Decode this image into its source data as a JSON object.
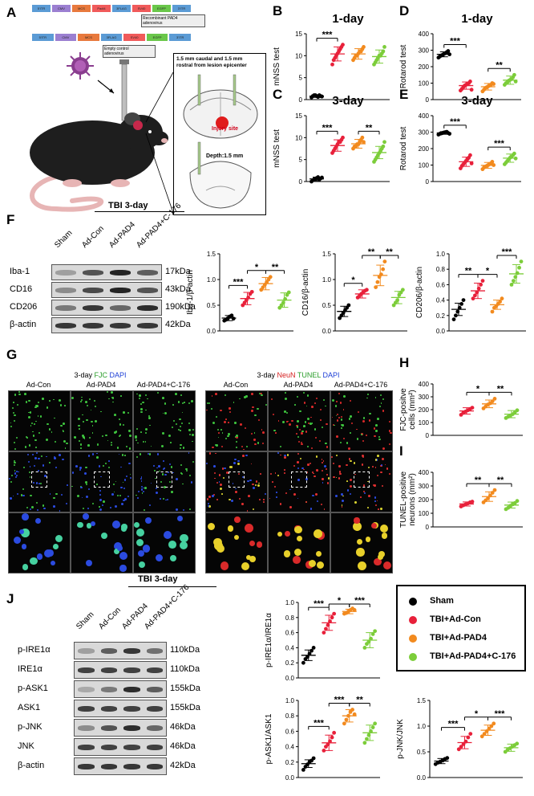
{
  "panels": {
    "A": "A",
    "B": "B",
    "C": "C",
    "D": "D",
    "E": "E",
    "F": "F",
    "G": "G",
    "H": "H",
    "I": "I",
    "J": "J"
  },
  "vectors": {
    "recombinant_label": "Recombinant PAD4\nadenovirus",
    "empty_label": "Empty control\nadenovirus",
    "row1": [
      "5'ITR",
      "CMV",
      "MCS",
      "Padi4",
      "3FLAG",
      "SV40",
      "EGFP",
      "3'ITR"
    ],
    "row2": [
      "5'ITR",
      "CMV",
      "MCS",
      "3FLAG",
      "SV40",
      "EGFP",
      "3'ITR"
    ],
    "colors": {
      "itr": "#5b9bd5",
      "cmv": "#9b7fd1",
      "mcs": "#e8793d",
      "padi4": "#f05a5a",
      "flag": "#5b9bd5",
      "sv40": "#f05a5a",
      "egfp": "#6ac74a"
    }
  },
  "schematic": {
    "inset_text": "1.5 mm caudal and 1.5 mm\nrostral from lesion epicenter",
    "injury_label": "Injury site",
    "depth_label": "Depth:1.5 mm"
  },
  "tbi_label_top": "TBI 3-day",
  "tbi_label_bottom": "TBI 3-day",
  "blot_F": {
    "lanes": [
      "Sham",
      "Ad-Con",
      "Ad-PAD4",
      "Ad-PAD4+C-176"
    ],
    "rows": [
      {
        "protein": "Iba-1",
        "kda": "17kDa"
      },
      {
        "protein": "CD16",
        "kda": "43kDa"
      },
      {
        "protein": "CD206",
        "kda": "190kDa"
      },
      {
        "protein": "β-actin",
        "kda": "42kDa"
      }
    ]
  },
  "blot_J": {
    "lanes": [
      "Sham",
      "Ad-Con",
      "Ad-PAD4",
      "Ad-PAD4+C-176"
    ],
    "rows": [
      {
        "protein": "p-IRE1α",
        "kda": "110kDa"
      },
      {
        "protein": "IRE1α",
        "kda": "110kDa"
      },
      {
        "protein": "p-ASK1",
        "kda": "155kDa"
      },
      {
        "protein": "ASK1",
        "kda": "155kDa"
      },
      {
        "protein": "p-JNK",
        "kda": "46kDa"
      },
      {
        "protein": "JNK",
        "kda": "46kDa"
      },
      {
        "protein": "β-actin",
        "kda": "42kDa"
      }
    ]
  },
  "micro": {
    "left_title_parts": [
      "3-day ",
      "FJC",
      " DAPI"
    ],
    "right_title_parts": [
      "3-day ",
      "NeuN",
      " TUNEL",
      " DAPI"
    ],
    "col_heads": [
      "Ad-Con",
      "Ad-PAD4",
      "Ad-PAD4+C-176"
    ]
  },
  "legend": {
    "items": [
      {
        "name": "Sham",
        "color": "#000000"
      },
      {
        "name": "TBI+Ad-Con",
        "color": "#e8203a"
      },
      {
        "name": "TBI+Ad-PAD4",
        "color": "#f28a1e"
      },
      {
        "name": "TBI+Ad-PAD4+C-176",
        "color": "#7ccd3a"
      }
    ]
  },
  "chart_data": [
    {
      "id": "B",
      "type": "scatter",
      "title": "1-day",
      "ylabel": "mNSS test",
      "ylim": [
        0,
        15
      ],
      "yticks": [
        0,
        5,
        10,
        15
      ],
      "groups": [
        "Sham",
        "TBI+Ad-Con",
        "TBI+Ad-PAD4",
        "TBI+Ad-PAD4+C-176"
      ],
      "means": [
        0.8,
        10.4,
        10.4,
        9.8
      ],
      "sd": [
        0.3,
        1.6,
        1.2,
        1.5
      ],
      "points": [
        [
          0.5,
          0.8,
          1.0,
          1.0,
          0.8,
          0.6,
          1.0,
          0.8,
          0.7
        ],
        [
          8,
          9,
          9.5,
          10,
          10.5,
          11,
          11.5,
          12,
          12.5
        ],
        [
          9,
          9.5,
          10,
          10,
          10.5,
          11,
          11,
          11.5,
          12
        ],
        [
          8,
          8.5,
          9,
          9.5,
          10,
          10,
          10.5,
          11,
          12
        ]
      ],
      "sig": [
        {
          "a": 0,
          "b": 1,
          "label": "***"
        }
      ]
    },
    {
      "id": "C",
      "type": "scatter",
      "title": "3-day",
      "ylabel": "mNSS test",
      "ylim": [
        0,
        15
      ],
      "yticks": [
        0,
        5,
        10,
        15
      ],
      "groups": [
        "Sham",
        "TBI+Ad-Con",
        "TBI+Ad-PAD4",
        "TBI+Ad-PAD4+C-176"
      ],
      "means": [
        0.6,
        8.2,
        8.6,
        6.6
      ],
      "sd": [
        0.4,
        1.3,
        1.0,
        1.4
      ],
      "points": [
        [
          0,
          0.3,
          0.5,
          0.6,
          0.8,
          1.0,
          0.5,
          0.7,
          0.9
        ],
        [
          6.5,
          7,
          7.5,
          8,
          8.5,
          9,
          9,
          9.5,
          10
        ],
        [
          7.5,
          8,
          8,
          8.5,
          8.5,
          9,
          9.5,
          10,
          9
        ],
        [
          4.5,
          5,
          5.5,
          6,
          6.5,
          7,
          7.5,
          8,
          9
        ]
      ],
      "sig": [
        {
          "a": 0,
          "b": 1,
          "label": "***"
        },
        {
          "a": 2,
          "b": 3,
          "label": "**"
        }
      ]
    },
    {
      "id": "D",
      "type": "scatter",
      "title": "1-day",
      "ylabel": "Rotarod test",
      "ylim": [
        0,
        400
      ],
      "yticks": [
        0,
        100,
        200,
        300,
        400
      ],
      "groups": [
        "Sham",
        "TBI+Ad-Con",
        "TBI+Ad-PAD4",
        "TBI+Ad-PAD4+C-176"
      ],
      "means": [
        275,
        85,
        78,
        118
      ],
      "sd": [
        15,
        22,
        20,
        25
      ],
      "points": [
        [
          255,
          262,
          268,
          272,
          278,
          282,
          288,
          295,
          275
        ],
        [
          55,
          65,
          75,
          85,
          90,
          95,
          100,
          110,
          60
        ],
        [
          50,
          60,
          70,
          75,
          80,
          85,
          90,
          100,
          95
        ],
        [
          90,
          100,
          105,
          115,
          120,
          125,
          135,
          150,
          110
        ]
      ],
      "sig": [
        {
          "a": 0,
          "b": 1,
          "label": "***"
        },
        {
          "a": 2,
          "b": 3,
          "label": "**"
        }
      ]
    },
    {
      "id": "E",
      "type": "scatter",
      "title": "3-day",
      "ylabel": "Rotarod test",
      "ylim": [
        0,
        400
      ],
      "yticks": [
        0,
        100,
        200,
        300,
        400
      ],
      "groups": [
        "Sham",
        "TBI+Ad-Con",
        "TBI+Ad-PAD4",
        "TBI+Ad-PAD4+C-176"
      ],
      "means": [
        295,
        120,
        98,
        142
      ],
      "sd": [
        8,
        28,
        18,
        25
      ],
      "points": [
        [
          285,
          290,
          292,
          295,
          298,
          300,
          302,
          295,
          290
        ],
        [
          80,
          95,
          105,
          115,
          125,
          135,
          145,
          160,
          110
        ],
        [
          75,
          85,
          90,
          95,
          100,
          105,
          110,
          120,
          100
        ],
        [
          105,
          115,
          125,
          135,
          145,
          150,
          160,
          170,
          140
        ]
      ],
      "sig": [
        {
          "a": 0,
          "b": 1,
          "label": "***"
        },
        {
          "a": 2,
          "b": 3,
          "label": "***"
        }
      ]
    },
    {
      "id": "F1",
      "type": "scatter",
      "ylabel": "Iba-1/β-actin",
      "ylim": [
        0,
        1.5
      ],
      "yticks": [
        0,
        0.5,
        1.0,
        1.5
      ],
      "ytick_labels": [
        "0.0",
        "0.5",
        "1.0",
        "1.5"
      ],
      "groups": [
        "Sham",
        "TBI+Ad-Con",
        "TBI+Ad-PAD4",
        "TBI+Ad-PAD4+C-176"
      ],
      "means": [
        0.25,
        0.63,
        0.92,
        0.6
      ],
      "sd": [
        0.05,
        0.12,
        0.12,
        0.14
      ],
      "points": [
        [
          0.2,
          0.22,
          0.25,
          0.28,
          0.3,
          0.24
        ],
        [
          0.5,
          0.55,
          0.6,
          0.65,
          0.72,
          0.76
        ],
        [
          0.8,
          0.85,
          0.9,
          0.95,
          1.0,
          1.05
        ],
        [
          0.45,
          0.5,
          0.55,
          0.62,
          0.7,
          0.75
        ]
      ],
      "sig": [
        {
          "a": 0,
          "b": 1,
          "label": "***"
        },
        {
          "a": 1,
          "b": 2,
          "label": "*"
        },
        {
          "a": 2,
          "b": 3,
          "label": "**"
        }
      ]
    },
    {
      "id": "F2",
      "type": "scatter",
      "ylabel": "CD16/β-actin",
      "ylim": [
        0,
        1.5
      ],
      "yticks": [
        0,
        0.5,
        1.0,
        1.5
      ],
      "ytick_labels": [
        "0.0",
        "0.5",
        "1.0",
        "1.5"
      ],
      "groups": [
        "Sham",
        "TBI+Ad-Con",
        "TBI+Ad-PAD4",
        "TBI+Ad-PAD4+C-176"
      ],
      "means": [
        0.38,
        0.72,
        1.08,
        0.65
      ],
      "sd": [
        0.1,
        0.08,
        0.2,
        0.12
      ],
      "points": [
        [
          0.25,
          0.3,
          0.35,
          0.4,
          0.45,
          0.5
        ],
        [
          0.65,
          0.68,
          0.72,
          0.75,
          0.78,
          0.8
        ],
        [
          0.85,
          0.95,
          1.05,
          1.1,
          1.2,
          1.35
        ],
        [
          0.5,
          0.55,
          0.6,
          0.7,
          0.75,
          0.8
        ]
      ],
      "sig": [
        {
          "a": 0,
          "b": 1,
          "label": "*"
        },
        {
          "a": 1,
          "b": 2,
          "label": "**"
        },
        {
          "a": 2,
          "b": 3,
          "label": "**"
        }
      ]
    },
    {
      "id": "F3",
      "type": "scatter",
      "ylabel": "CD206/β-actin",
      "ylim": [
        0,
        1.0
      ],
      "yticks": [
        0,
        0.2,
        0.4,
        0.6,
        0.8,
        1.0
      ],
      "ytick_labels": [
        "0.0",
        "0.2",
        "0.4",
        "0.6",
        "0.8",
        "1.0"
      ],
      "groups": [
        "Sham",
        "TBI+Ad-Con",
        "TBI+Ad-PAD4",
        "TBI+Ad-PAD4+C-176"
      ],
      "means": [
        0.28,
        0.52,
        0.34,
        0.74
      ],
      "sd": [
        0.08,
        0.1,
        0.06,
        0.12
      ],
      "points": [
        [
          0.15,
          0.2,
          0.25,
          0.3,
          0.35,
          0.4
        ],
        [
          0.42,
          0.46,
          0.5,
          0.55,
          0.6,
          0.65
        ],
        [
          0.25,
          0.3,
          0.32,
          0.35,
          0.38,
          0.42
        ],
        [
          0.6,
          0.65,
          0.7,
          0.75,
          0.82,
          0.9
        ]
      ],
      "sig": [
        {
          "a": 0,
          "b": 1,
          "label": "**"
        },
        {
          "a": 1,
          "b": 2,
          "label": "*"
        },
        {
          "a": 2,
          "b": 3,
          "label": "***"
        }
      ]
    },
    {
      "id": "H",
      "type": "scatter",
      "ylabel": "FJC-positve\ncells (mm²)",
      "ylim": [
        0,
        400
      ],
      "yticks": [
        0,
        100,
        200,
        300,
        400
      ],
      "groups": [
        "Sham",
        "TBI+Ad-Con",
        "TBI+Ad-PAD4",
        "TBI+Ad-PAD4+C-176"
      ],
      "omit_first": true,
      "means": [
        0,
        190,
        245,
        165
      ],
      "sd": [
        0,
        25,
        30,
        28
      ],
      "points": [
        [],
        [
          160,
          175,
          185,
          195,
          205,
          215
        ],
        [
          210,
          225,
          240,
          250,
          265,
          285
        ],
        [
          135,
          145,
          155,
          165,
          180,
          195
        ]
      ],
      "sig": [
        {
          "a": 1,
          "b": 2,
          "label": "*"
        },
        {
          "a": 2,
          "b": 3,
          "label": "**"
        }
      ]
    },
    {
      "id": "I",
      "type": "scatter",
      "ylabel": "TUNEL-positive\nneurons (mm²)",
      "ylim": [
        0,
        400
      ],
      "yticks": [
        0,
        100,
        200,
        300,
        400
      ],
      "groups": [
        "Sham",
        "TBI+Ad-Con",
        "TBI+Ad-PAD4",
        "TBI+Ad-PAD4+C-176"
      ],
      "omit_first": true,
      "means": [
        0,
        168,
        222,
        160
      ],
      "sd": [
        0,
        15,
        35,
        22
      ],
      "points": [
        [],
        [
          150,
          158,
          165,
          172,
          180,
          185
        ],
        [
          180,
          195,
          210,
          230,
          250,
          270
        ],
        [
          130,
          140,
          155,
          165,
          175,
          190
        ]
      ],
      "sig": [
        {
          "a": 1,
          "b": 2,
          "label": "**"
        },
        {
          "a": 2,
          "b": 3,
          "label": "**"
        }
      ]
    },
    {
      "id": "J1",
      "type": "scatter",
      "ylabel": "p-IRE1α/IRE1α",
      "ylim": [
        0,
        1.0
      ],
      "yticks": [
        0,
        0.2,
        0.4,
        0.6,
        0.8,
        1.0
      ],
      "ytick_labels": [
        "0.0",
        "0.2",
        "0.4",
        "0.6",
        "0.8",
        "1.0"
      ],
      "groups": [
        "Sham",
        "TBI+Ad-Con",
        "TBI+Ad-PAD4",
        "TBI+Ad-PAD4+C-176"
      ],
      "means": [
        0.3,
        0.73,
        0.88,
        0.5
      ],
      "sd": [
        0.07,
        0.1,
        0.03,
        0.1
      ],
      "points": [
        [
          0.2,
          0.25,
          0.28,
          0.32,
          0.36,
          0.4
        ],
        [
          0.6,
          0.65,
          0.7,
          0.75,
          0.8,
          0.85
        ],
        [
          0.85,
          0.86,
          0.88,
          0.9,
          0.92,
          0.9
        ],
        [
          0.4,
          0.45,
          0.48,
          0.52,
          0.58,
          0.62
        ]
      ],
      "sig": [
        {
          "a": 0,
          "b": 1,
          "label": "***"
        },
        {
          "a": 1,
          "b": 2,
          "label": "*"
        },
        {
          "a": 2,
          "b": 3,
          "label": "***"
        }
      ]
    },
    {
      "id": "J2",
      "type": "scatter",
      "ylabel": "p-ASK1/ASK1",
      "ylim": [
        0,
        1.0
      ],
      "yticks": [
        0,
        0.2,
        0.4,
        0.6,
        0.8,
        1.0
      ],
      "ytick_labels": [
        "0.0",
        "0.2",
        "0.4",
        "0.6",
        "0.8",
        "1.0"
      ],
      "groups": [
        "Sham",
        "TBI+Ad-Con",
        "TBI+Ad-PAD4",
        "TBI+Ad-PAD4+C-176"
      ],
      "means": [
        0.18,
        0.45,
        0.8,
        0.58
      ],
      "sd": [
        0.05,
        0.1,
        0.08,
        0.1
      ],
      "points": [
        [
          0.1,
          0.14,
          0.17,
          0.2,
          0.22,
          0.25
        ],
        [
          0.35,
          0.4,
          0.43,
          0.47,
          0.52,
          0.58
        ],
        [
          0.7,
          0.75,
          0.8,
          0.85,
          0.88,
          0.82
        ],
        [
          0.45,
          0.5,
          0.55,
          0.6,
          0.65,
          0.7
        ]
      ],
      "sig": [
        {
          "a": 0,
          "b": 1,
          "label": "***"
        },
        {
          "a": 1,
          "b": 2,
          "label": "***"
        },
        {
          "a": 2,
          "b": 3,
          "label": "**"
        }
      ]
    },
    {
      "id": "J3",
      "type": "scatter",
      "ylabel": "p-JNK/JNK",
      "ylim": [
        0,
        1.5
      ],
      "yticks": [
        0,
        0.5,
        1.0,
        1.5
      ],
      "ytick_labels": [
        "0.0",
        "0.5",
        "1.0",
        "1.5"
      ],
      "groups": [
        "Sham",
        "TBI+Ad-Con",
        "TBI+Ad-PAD4",
        "TBI+Ad-PAD4+C-176"
      ],
      "means": [
        0.32,
        0.68,
        0.92,
        0.58
      ],
      "sd": [
        0.05,
        0.12,
        0.1,
        0.07
      ],
      "points": [
        [
          0.26,
          0.29,
          0.31,
          0.33,
          0.36,
          0.38
        ],
        [
          0.55,
          0.6,
          0.65,
          0.7,
          0.78,
          0.85
        ],
        [
          0.8,
          0.85,
          0.9,
          0.95,
          1.0,
          1.05
        ],
        [
          0.5,
          0.54,
          0.57,
          0.6,
          0.63,
          0.66
        ]
      ],
      "sig": [
        {
          "a": 0,
          "b": 1,
          "label": "***"
        },
        {
          "a": 1,
          "b": 2,
          "label": "*"
        },
        {
          "a": 2,
          "b": 3,
          "label": "***"
        }
      ]
    }
  ]
}
